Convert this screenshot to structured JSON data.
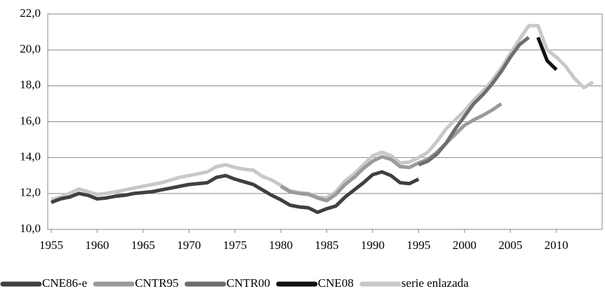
{
  "chart_data": {
    "type": "line",
    "x": [
      1955,
      1956,
      1957,
      1958,
      1959,
      1960,
      1961,
      1962,
      1963,
      1964,
      1965,
      1966,
      1967,
      1968,
      1969,
      1970,
      1971,
      1972,
      1973,
      1974,
      1975,
      1976,
      1977,
      1978,
      1979,
      1980,
      1981,
      1982,
      1983,
      1984,
      1985,
      1986,
      1987,
      1988,
      1989,
      1990,
      1991,
      1992,
      1993,
      1994,
      1995,
      1996,
      1997,
      1998,
      1999,
      2000,
      2001,
      2002,
      2003,
      2004,
      2005,
      2006,
      2007,
      2008,
      2009,
      2010,
      2011,
      2012,
      2013,
      2014
    ],
    "xlim": [
      1955,
      2014
    ],
    "xticks": [
      1955,
      1960,
      1965,
      1970,
      1975,
      1980,
      1985,
      1990,
      1995,
      2000,
      2005,
      2010
    ],
    "ylim": [
      10,
      22
    ],
    "yticks": [
      {
        "value": 10,
        "label": "10,0"
      },
      {
        "value": 12,
        "label": "12,0"
      },
      {
        "value": 14,
        "label": "14,0"
      },
      {
        "value": 16,
        "label": "16,0"
      },
      {
        "value": 18,
        "label": "18,0"
      },
      {
        "value": 20,
        "label": "20,0"
      },
      {
        "value": 22,
        "label": "22,0"
      }
    ],
    "grid": true,
    "legend": "bottom",
    "series": [
      {
        "name": "serie enlazada",
        "color": "#c8c8c8",
        "values": [
          11.65,
          11.8,
          12.0,
          12.25,
          12.1,
          11.95,
          12.0,
          12.1,
          12.2,
          12.3,
          12.4,
          12.5,
          12.6,
          12.75,
          12.9,
          13.0,
          13.1,
          13.2,
          13.5,
          13.6,
          13.45,
          13.35,
          13.3,
          12.95,
          12.75,
          12.45,
          12.15,
          12.05,
          12.0,
          11.8,
          11.75,
          12.1,
          12.7,
          13.1,
          13.6,
          14.1,
          14.3,
          14.1,
          13.7,
          13.75,
          14.0,
          14.3,
          14.9,
          15.6,
          16.1,
          16.6,
          17.2,
          17.7,
          18.3,
          19.0,
          19.8,
          20.6,
          21.35,
          21.35,
          20.0,
          19.6,
          19.1,
          18.4,
          17.9,
          18.2
        ]
      },
      {
        "name": "CNTR95",
        "color": "#9a9a9a",
        "values": [
          null,
          null,
          null,
          null,
          null,
          null,
          null,
          null,
          null,
          null,
          null,
          null,
          null,
          null,
          null,
          null,
          null,
          null,
          null,
          null,
          null,
          null,
          null,
          null,
          null,
          12.4,
          12.1,
          12.0,
          11.95,
          11.75,
          11.6,
          11.95,
          12.5,
          12.9,
          13.4,
          13.8,
          14.05,
          13.9,
          13.5,
          13.45,
          13.7,
          13.9,
          14.3,
          14.8,
          15.3,
          15.8,
          16.1,
          16.35,
          16.65,
          17.0,
          null,
          null,
          null,
          null,
          null,
          null,
          null,
          null,
          null,
          null
        ]
      },
      {
        "name": "CNTR00",
        "color": "#6e6e6e",
        "values": [
          null,
          null,
          null,
          null,
          null,
          null,
          null,
          null,
          null,
          null,
          null,
          null,
          null,
          null,
          null,
          null,
          null,
          null,
          null,
          null,
          null,
          null,
          null,
          null,
          null,
          null,
          null,
          null,
          null,
          null,
          null,
          null,
          null,
          null,
          null,
          null,
          null,
          null,
          null,
          null,
          13.6,
          13.8,
          14.2,
          14.8,
          15.6,
          16.3,
          17.0,
          17.5,
          18.1,
          18.8,
          19.6,
          20.3,
          20.7,
          null,
          null,
          null,
          null,
          null,
          null,
          null
        ]
      },
      {
        "name": "CNE86-e",
        "color": "#404040",
        "values": [
          11.5,
          11.7,
          11.8,
          12.0,
          11.9,
          11.7,
          11.75,
          11.85,
          11.9,
          12.0,
          12.05,
          12.1,
          12.2,
          12.3,
          12.4,
          12.5,
          12.55,
          12.6,
          12.9,
          13.0,
          12.8,
          12.65,
          12.5,
          12.2,
          11.9,
          11.65,
          11.35,
          11.25,
          11.2,
          10.95,
          11.15,
          11.3,
          11.8,
          12.2,
          12.6,
          13.05,
          13.2,
          13.0,
          12.6,
          12.55,
          12.8,
          null,
          null,
          null,
          null,
          null,
          null,
          null,
          null,
          null,
          null,
          null,
          null,
          null,
          null,
          null,
          null,
          null,
          null,
          null
        ]
      },
      {
        "name": "CNE08",
        "color": "#111111",
        "values": [
          null,
          null,
          null,
          null,
          null,
          null,
          null,
          null,
          null,
          null,
          null,
          null,
          null,
          null,
          null,
          null,
          null,
          null,
          null,
          null,
          null,
          null,
          null,
          null,
          null,
          null,
          null,
          null,
          null,
          null,
          null,
          null,
          null,
          null,
          null,
          null,
          null,
          null,
          null,
          null,
          null,
          null,
          null,
          null,
          null,
          null,
          null,
          null,
          null,
          null,
          null,
          null,
          null,
          20.7,
          19.4,
          18.9,
          null,
          null,
          null,
          null
        ]
      }
    ],
    "legend_order": [
      3,
      1,
      2,
      4,
      0
    ]
  }
}
